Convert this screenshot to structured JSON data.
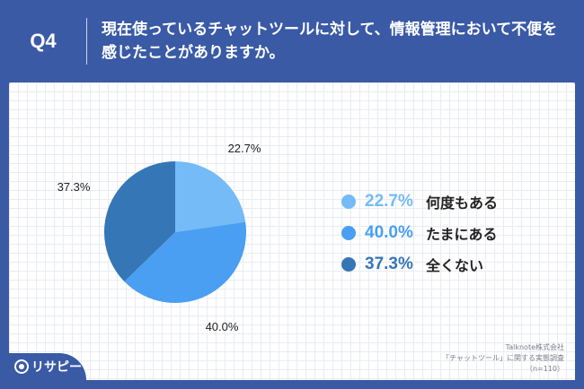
{
  "header": {
    "q_label": "Q4",
    "question": "現在使っているチャットツールに対して、情報管理において不便を感じたことがありますか。"
  },
  "chart_data": {
    "type": "pie",
    "categories": [
      "何度もある",
      "たまにある",
      "全くない"
    ],
    "values": [
      22.7,
      40.0,
      37.3
    ],
    "value_labels": [
      "22.7%",
      "40.0%",
      "37.3%"
    ],
    "colors": [
      "#74bbf7",
      "#4a9ff2",
      "#3576b7"
    ],
    "start_angle": "12 o'clock",
    "direction": "clockwise",
    "legend_placement": "right"
  },
  "source": {
    "line1": "Talknote株式会社",
    "line2": "「チャットツール」に関する実態調査",
    "line3": "（n=110）"
  },
  "logo": {
    "text": "リサピー",
    "icon": "search-magnifier-icon"
  }
}
